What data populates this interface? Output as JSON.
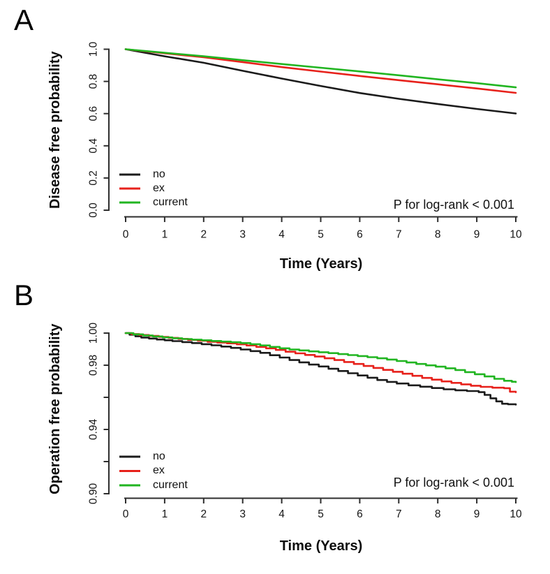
{
  "chart_data": [
    {
      "type": "line",
      "panel_label": "A",
      "ylabel": "Disease free probability",
      "xlabel": "Time (Years)",
      "p_label": "P for log-rank < 0.001",
      "interpolation": "linear",
      "xlim": [
        0,
        10
      ],
      "ylim": [
        0.0,
        1.0
      ],
      "grid": false,
      "legend_position": "bottom-left",
      "x_ticks": {
        "values": [
          0,
          1,
          2,
          3,
          4,
          5,
          6,
          7,
          8,
          9,
          10
        ],
        "labels": [
          "0",
          "1",
          "2",
          "3",
          "4",
          "5",
          "6",
          "7",
          "8",
          "9",
          "10"
        ]
      },
      "y_ticks": {
        "values": [
          0.0,
          0.2,
          0.4,
          0.6,
          0.8,
          1.0
        ],
        "labels": [
          "0.0",
          "0.2",
          "0.4",
          "0.6",
          "0.8",
          "1.0"
        ]
      },
      "legend": [
        {
          "label": "no",
          "color": "#1b1b1b"
        },
        {
          "label": "ex",
          "color": "#e7211b"
        },
        {
          "label": "current",
          "color": "#21b521"
        }
      ],
      "series": [
        {
          "name": "no",
          "color": "#1b1b1b",
          "points": [
            [
              0,
              1.0
            ],
            [
              1,
              0.956
            ],
            [
              2,
              0.916
            ],
            [
              3,
              0.866
            ],
            [
              4,
              0.818
            ],
            [
              5,
              0.772
            ],
            [
              6,
              0.728
            ],
            [
              7,
              0.692
            ],
            [
              8,
              0.66
            ],
            [
              9,
              0.629
            ],
            [
              10,
              0.601
            ]
          ]
        },
        {
          "name": "ex",
          "color": "#e7211b",
          "points": [
            [
              0,
              1.0
            ],
            [
              1,
              0.975
            ],
            [
              2,
              0.95
            ],
            [
              3,
              0.92
            ],
            [
              4,
              0.889
            ],
            [
              5,
              0.861
            ],
            [
              6,
              0.834
            ],
            [
              7,
              0.808
            ],
            [
              8,
              0.782
            ],
            [
              9,
              0.756
            ],
            [
              10,
              0.729
            ]
          ]
        },
        {
          "name": "current",
          "color": "#21b521",
          "points": [
            [
              0,
              1.0
            ],
            [
              1,
              0.978
            ],
            [
              2,
              0.956
            ],
            [
              3,
              0.932
            ],
            [
              4,
              0.908
            ],
            [
              5,
              0.885
            ],
            [
              6,
              0.862
            ],
            [
              7,
              0.838
            ],
            [
              8,
              0.813
            ],
            [
              9,
              0.789
            ],
            [
              10,
              0.763
            ]
          ]
        }
      ]
    },
    {
      "type": "line",
      "panel_label": "B",
      "ylabel": "Operation free probability",
      "xlabel": "Time (Years)",
      "p_label": "P for log-rank < 0.001",
      "interpolation": "step-after",
      "xlim": [
        0,
        10
      ],
      "ylim": [
        0.9,
        1.0
      ],
      "grid": false,
      "legend_position": "bottom-left",
      "x_ticks": {
        "values": [
          0,
          1,
          2,
          3,
          4,
          5,
          6,
          7,
          8,
          9,
          10
        ],
        "labels": [
          "0",
          "1",
          "2",
          "3",
          "4",
          "5",
          "6",
          "7",
          "8",
          "9",
          "10"
        ]
      },
      "y_ticks": {
        "values": [
          0.9,
          0.92,
          0.94,
          0.96,
          0.98,
          1.0
        ],
        "labels": [
          "0.90",
          "",
          "0.94",
          "",
          "0.98",
          "1.00"
        ]
      },
      "legend": [
        {
          "label": "no",
          "color": "#1b1b1b"
        },
        {
          "label": "ex",
          "color": "#e7211b"
        },
        {
          "label": "current",
          "color": "#21b521"
        }
      ],
      "series": [
        {
          "name": "no",
          "color": "#1b1b1b",
          "points": [
            [
              0,
              1.0
            ],
            [
              0.1,
              0.999
            ],
            [
              0.25,
              0.998
            ],
            [
              0.4,
              0.9972
            ],
            [
              0.6,
              0.9966
            ],
            [
              0.8,
              0.996
            ],
            [
              1.0,
              0.9955
            ],
            [
              1.2,
              0.995
            ],
            [
              1.45,
              0.9944
            ],
            [
              1.7,
              0.9938
            ],
            [
              1.95,
              0.9931
            ],
            [
              2.2,
              0.9924
            ],
            [
              2.45,
              0.9916
            ],
            [
              2.7,
              0.9908
            ],
            [
              2.95,
              0.9898
            ],
            [
              3.2,
              0.9888
            ],
            [
              3.45,
              0.9877
            ],
            [
              3.7,
              0.9862
            ],
            [
              3.95,
              0.9848
            ],
            [
              4.2,
              0.9832
            ],
            [
              4.45,
              0.9818
            ],
            [
              4.7,
              0.9804
            ],
            [
              4.95,
              0.9792
            ],
            [
              5.2,
              0.9778
            ],
            [
              5.45,
              0.9764
            ],
            [
              5.7,
              0.975
            ],
            [
              5.95,
              0.9736
            ],
            [
              6.2,
              0.9722
            ],
            [
              6.45,
              0.9708
            ],
            [
              6.7,
              0.9696
            ],
            [
              6.95,
              0.9686
            ],
            [
              7.25,
              0.9675
            ],
            [
              7.55,
              0.9666
            ],
            [
              7.85,
              0.9658
            ],
            [
              8.15,
              0.965
            ],
            [
              8.45,
              0.9644
            ],
            [
              8.75,
              0.9639
            ],
            [
              9.05,
              0.9632
            ],
            [
              9.2,
              0.9615
            ],
            [
              9.35,
              0.9594
            ],
            [
              9.5,
              0.9575
            ],
            [
              9.65,
              0.956
            ],
            [
              9.8,
              0.9557
            ],
            [
              10,
              0.9555
            ]
          ]
        },
        {
          "name": "ex",
          "color": "#e7211b",
          "points": [
            [
              0,
              1.0
            ],
            [
              0.15,
              0.9994
            ],
            [
              0.35,
              0.9988
            ],
            [
              0.6,
              0.9982
            ],
            [
              0.85,
              0.9976
            ],
            [
              1.1,
              0.997
            ],
            [
              1.35,
              0.9964
            ],
            [
              1.6,
              0.9958
            ],
            [
              1.85,
              0.9952
            ],
            [
              2.1,
              0.9946
            ],
            [
              2.35,
              0.9941
            ],
            [
              2.6,
              0.9936
            ],
            [
              2.85,
              0.993
            ],
            [
              3.1,
              0.9923
            ],
            [
              3.35,
              0.9914
            ],
            [
              3.6,
              0.9905
            ],
            [
              3.85,
              0.9895
            ],
            [
              4.1,
              0.9884
            ],
            [
              4.35,
              0.9874
            ],
            [
              4.6,
              0.9864
            ],
            [
              4.85,
              0.9854
            ],
            [
              5.1,
              0.9843
            ],
            [
              5.35,
              0.9832
            ],
            [
              5.6,
              0.982
            ],
            [
              5.85,
              0.9808
            ],
            [
              6.1,
              0.9795
            ],
            [
              6.35,
              0.9783
            ],
            [
              6.6,
              0.9771
            ],
            [
              6.85,
              0.9759
            ],
            [
              7.1,
              0.9747
            ],
            [
              7.35,
              0.9734
            ],
            [
              7.6,
              0.9721
            ],
            [
              7.85,
              0.971
            ],
            [
              8.1,
              0.9699
            ],
            [
              8.35,
              0.969
            ],
            [
              8.6,
              0.9681
            ],
            [
              8.85,
              0.9672
            ],
            [
              9.1,
              0.9665
            ],
            [
              9.4,
              0.966
            ],
            [
              9.7,
              0.9657
            ],
            [
              9.85,
              0.9635
            ],
            [
              10,
              0.9632
            ]
          ]
        },
        {
          "name": "current",
          "color": "#21b521",
          "points": [
            [
              0,
              1.0
            ],
            [
              0.2,
              0.9992
            ],
            [
              0.45,
              0.9985
            ],
            [
              0.7,
              0.9979
            ],
            [
              0.95,
              0.9973
            ],
            [
              1.2,
              0.9968
            ],
            [
              1.45,
              0.9963
            ],
            [
              1.7,
              0.9959
            ],
            [
              1.95,
              0.9955
            ],
            [
              2.2,
              0.9951
            ],
            [
              2.45,
              0.9947
            ],
            [
              2.7,
              0.9943
            ],
            [
              2.95,
              0.9938
            ],
            [
              3.2,
              0.9931
            ],
            [
              3.45,
              0.9923
            ],
            [
              3.7,
              0.9914
            ],
            [
              3.95,
              0.9905
            ],
            [
              4.2,
              0.9898
            ],
            [
              4.45,
              0.9892
            ],
            [
              4.7,
              0.9886
            ],
            [
              4.95,
              0.9881
            ],
            [
              5.2,
              0.9875
            ],
            [
              5.45,
              0.9869
            ],
            [
              5.7,
              0.9863
            ],
            [
              5.95,
              0.9857
            ],
            [
              6.2,
              0.985
            ],
            [
              6.45,
              0.9843
            ],
            [
              6.7,
              0.9835
            ],
            [
              6.95,
              0.9826
            ],
            [
              7.2,
              0.9817
            ],
            [
              7.45,
              0.9808
            ],
            [
              7.7,
              0.9799
            ],
            [
              7.95,
              0.9791
            ],
            [
              8.2,
              0.9781
            ],
            [
              8.45,
              0.977
            ],
            [
              8.7,
              0.9757
            ],
            [
              8.95,
              0.9744
            ],
            [
              9.2,
              0.973
            ],
            [
              9.45,
              0.9715
            ],
            [
              9.7,
              0.9703
            ],
            [
              9.9,
              0.9697
            ],
            [
              10,
              0.9695
            ]
          ]
        }
      ]
    }
  ]
}
